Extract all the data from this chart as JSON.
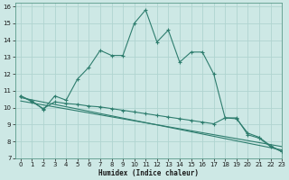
{
  "xlabel": "Humidex (Indice chaleur)",
  "xlim": [
    -0.5,
    23
  ],
  "ylim": [
    7,
    16.2
  ],
  "xticks": [
    0,
    1,
    2,
    3,
    4,
    5,
    6,
    7,
    8,
    9,
    10,
    11,
    12,
    13,
    14,
    15,
    16,
    17,
    18,
    19,
    20,
    21,
    22,
    23
  ],
  "yticks": [
    7,
    8,
    9,
    10,
    11,
    12,
    13,
    14,
    15,
    16
  ],
  "bg_color": "#cde8e5",
  "grid_color": "#b0d4d0",
  "line_color": "#2e7d6e",
  "series1_x": [
    0,
    1,
    2,
    3,
    4,
    5,
    6,
    7,
    8,
    9,
    10,
    11,
    12,
    13,
    14,
    15,
    16,
    17,
    18,
    19,
    20,
    21,
    22,
    23
  ],
  "series1_y": [
    10.7,
    10.4,
    9.9,
    10.7,
    10.45,
    11.7,
    12.4,
    13.4,
    13.1,
    13.1,
    15.0,
    15.8,
    13.9,
    14.6,
    12.7,
    13.3,
    13.3,
    12.0,
    9.4,
    9.4,
    8.4,
    8.2,
    7.7,
    7.4
  ],
  "series2_x": [
    0,
    1,
    2,
    3,
    4,
    5,
    6,
    7,
    8,
    9,
    10,
    11,
    12,
    13,
    14,
    15,
    16,
    17,
    18,
    19,
    20,
    21,
    22,
    23
  ],
  "series2_y": [
    10.7,
    10.35,
    9.95,
    10.35,
    10.25,
    10.2,
    10.1,
    10.05,
    9.95,
    9.85,
    9.75,
    9.65,
    9.55,
    9.45,
    9.35,
    9.25,
    9.15,
    9.05,
    9.4,
    9.35,
    8.5,
    8.25,
    7.75,
    7.4
  ],
  "series3_x": [
    0,
    23
  ],
  "series3_y": [
    10.6,
    7.5
  ],
  "series4_x": [
    0,
    23
  ],
  "series4_y": [
    10.4,
    7.7
  ]
}
